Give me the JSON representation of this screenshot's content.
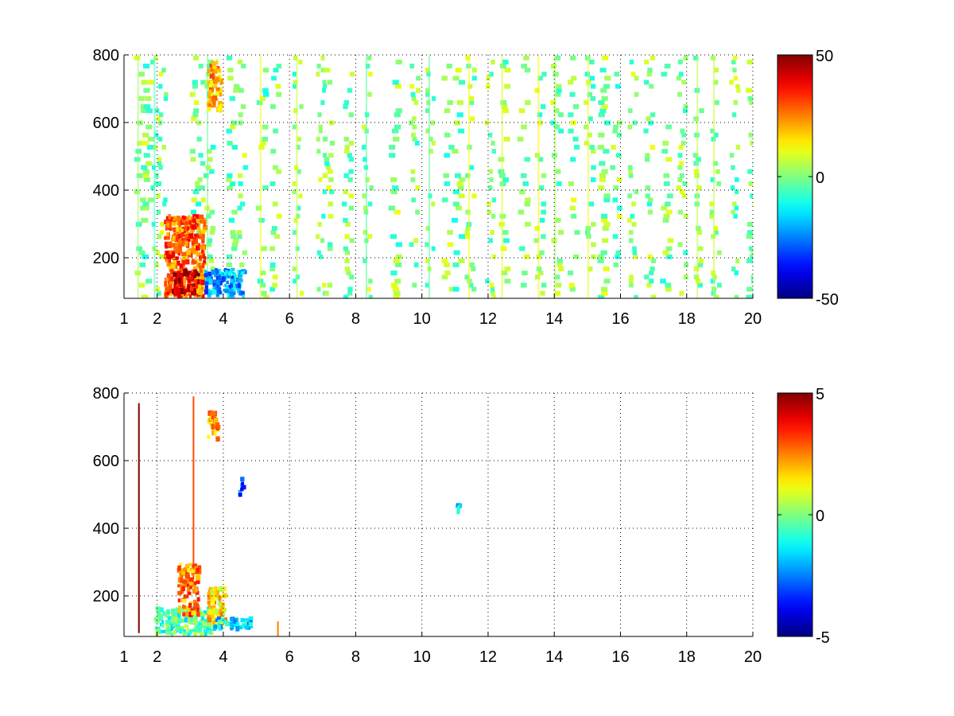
{
  "chart_data": [
    {
      "type": "heatmap",
      "title": "",
      "xlabel": "",
      "ylabel": "",
      "xlim": [
        1,
        20
      ],
      "ylim": [
        80,
        800
      ],
      "xticks": [
        1,
        2,
        4,
        6,
        8,
        10,
        12,
        14,
        16,
        18,
        20
      ],
      "yticks": [
        200,
        400,
        600,
        800
      ],
      "grid": true,
      "grid_style": "dotted",
      "colormap": "jet",
      "colorbar": {
        "position": "right",
        "clim": [
          -50,
          50
        ],
        "ticks": [
          50,
          0,
          -50
        ]
      },
      "regions": [
        {
          "x": [
            2.2,
            3.4
          ],
          "y": [
            90,
            330
          ],
          "value": 28,
          "note": "warm blob"
        },
        {
          "x": [
            2.4,
            3.2
          ],
          "y": [
            100,
            170
          ],
          "value": 42,
          "note": "hot core"
        },
        {
          "x": [
            3.4,
            4.6
          ],
          "y": [
            90,
            170
          ],
          "value": -22,
          "note": "cool band"
        },
        {
          "x": [
            3.5,
            3.9
          ],
          "y": [
            640,
            790
          ],
          "value": 20,
          "note": "warm patch"
        }
      ],
      "stripes_x": [
        1.4,
        1.6,
        1.9,
        2.1,
        3.1,
        3.2,
        3.5,
        4.2,
        4.5,
        5.1,
        5.5,
        6.2,
        6.9,
        7.1,
        7.7,
        8.3,
        9.1,
        9.7,
        10.2,
        10.7,
        11.0,
        11.4,
        12.0,
        12.4,
        13.0,
        13.5,
        14.0,
        14.5,
        15.0,
        15.4,
        15.8,
        16.3,
        16.8,
        17.3,
        17.8,
        18.3,
        18.8,
        19.4,
        19.9
      ]
    },
    {
      "type": "heatmap",
      "title": "",
      "xlabel": "",
      "ylabel": "",
      "xlim": [
        1,
        20
      ],
      "ylim": [
        80,
        800
      ],
      "xticks": [
        1,
        2,
        4,
        6,
        8,
        10,
        12,
        14,
        16,
        18,
        20
      ],
      "yticks": [
        200,
        400,
        600,
        800
      ],
      "grid": true,
      "grid_style": "dotted",
      "colormap": "jet",
      "colorbar": {
        "position": "right",
        "clim": [
          -5,
          5
        ],
        "ticks": [
          5,
          0,
          -5
        ]
      },
      "regions": [
        {
          "x": [
            1.9,
            3.6
          ],
          "y": [
            90,
            170
          ],
          "value": -0.5,
          "note": "base band"
        },
        {
          "x": [
            2.6,
            3.2
          ],
          "y": [
            150,
            300
          ],
          "value": 2.5,
          "note": "warm cluster"
        },
        {
          "x": [
            3.5,
            4.0
          ],
          "y": [
            110,
            230
          ],
          "value": 1.5,
          "note": "yellow cluster"
        },
        {
          "x": [
            3.6,
            4.8
          ],
          "y": [
            110,
            140
          ],
          "value": -1.5,
          "note": "tail"
        },
        {
          "x": [
            3.5,
            3.8
          ],
          "y": [
            670,
            750
          ],
          "value": 2.0,
          "note": "upper patch"
        },
        {
          "x": [
            4.45,
            4.55
          ],
          "y": [
            490,
            560
          ],
          "value": -3.0,
          "note": "small blue"
        },
        {
          "x": [
            11.0,
            11.15
          ],
          "y": [
            455,
            475
          ],
          "value": -1.8,
          "note": "isolated cell"
        }
      ],
      "lines_x": [
        {
          "x": 1.45,
          "y": [
            90,
            770
          ],
          "value": 5
        },
        {
          "x": 3.1,
          "y": [
            250,
            790
          ],
          "value": 3
        },
        {
          "x": 5.65,
          "y": [
            80,
            125
          ],
          "value": 2.5
        }
      ]
    }
  ]
}
